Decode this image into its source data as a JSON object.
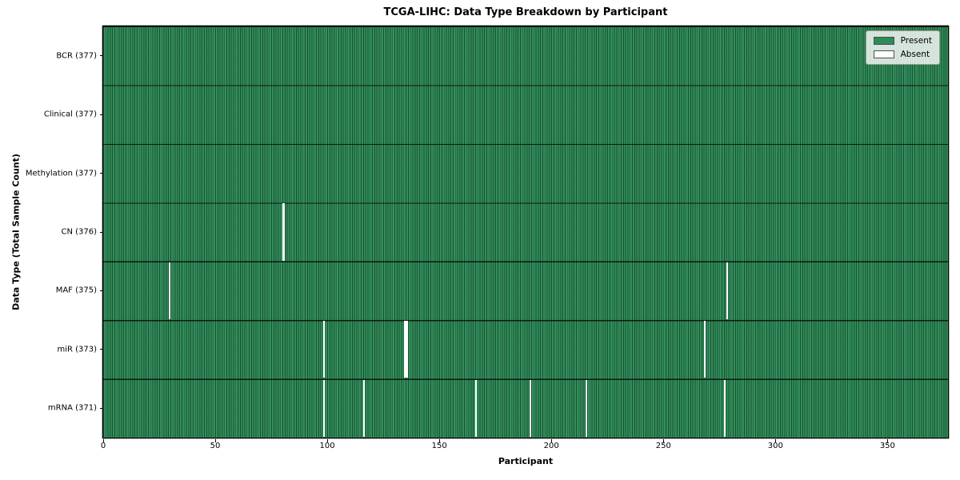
{
  "title": "TCGA-LIHC: Data Type Breakdown by Participant",
  "xlabel": "Participant",
  "ylabel": "Data Type (Total Sample Count)",
  "legend": {
    "present_label": "Present",
    "absent_label": "Absent"
  },
  "colors": {
    "present": "#2e8b57",
    "absent": "#ffffff",
    "cell_edge_dark": "#174a2e",
    "row_divider": "#111111",
    "legend_background": "rgba(255,255,255,0.8)",
    "legend_border": "#9a9a9a"
  },
  "chart_data": {
    "type": "heatmap",
    "title": "TCGA-LIHC: Data Type Breakdown by Participant",
    "xlabel": "Participant",
    "ylabel": "Data Type (Total Sample Count)",
    "legend_entries": [
      {
        "label": "Present",
        "color": "#2e8b57"
      },
      {
        "label": "Absent",
        "color": "#ffffff"
      }
    ],
    "legend_position": "upper right",
    "x_range": [
      0,
      377
    ],
    "n_participants": 377,
    "x_ticks": [
      0,
      50,
      100,
      150,
      200,
      250,
      300,
      350
    ],
    "rows": [
      {
        "label": "BCR (377)",
        "data_type": "BCR",
        "total": 377,
        "absent_participants": []
      },
      {
        "label": "Clinical (377)",
        "data_type": "Clinical",
        "total": 377,
        "absent_participants": []
      },
      {
        "label": "Methylation (377)",
        "data_type": "Methylation",
        "total": 377,
        "absent_participants": []
      },
      {
        "label": "CN (376)",
        "data_type": "CN",
        "total": 376,
        "absent_participants": [
          80
        ]
      },
      {
        "label": "MAF (375)",
        "data_type": "MAF",
        "total": 375,
        "absent_participants": [
          29,
          278
        ]
      },
      {
        "label": "miR (373)",
        "data_type": "miR",
        "total": 373,
        "absent_participants": [
          98,
          134,
          135,
          268
        ]
      },
      {
        "label": "mRNA (371)",
        "data_type": "mRNA",
        "total": 371,
        "absent_participants": [
          98,
          116,
          166,
          190,
          215,
          277
        ]
      }
    ]
  }
}
